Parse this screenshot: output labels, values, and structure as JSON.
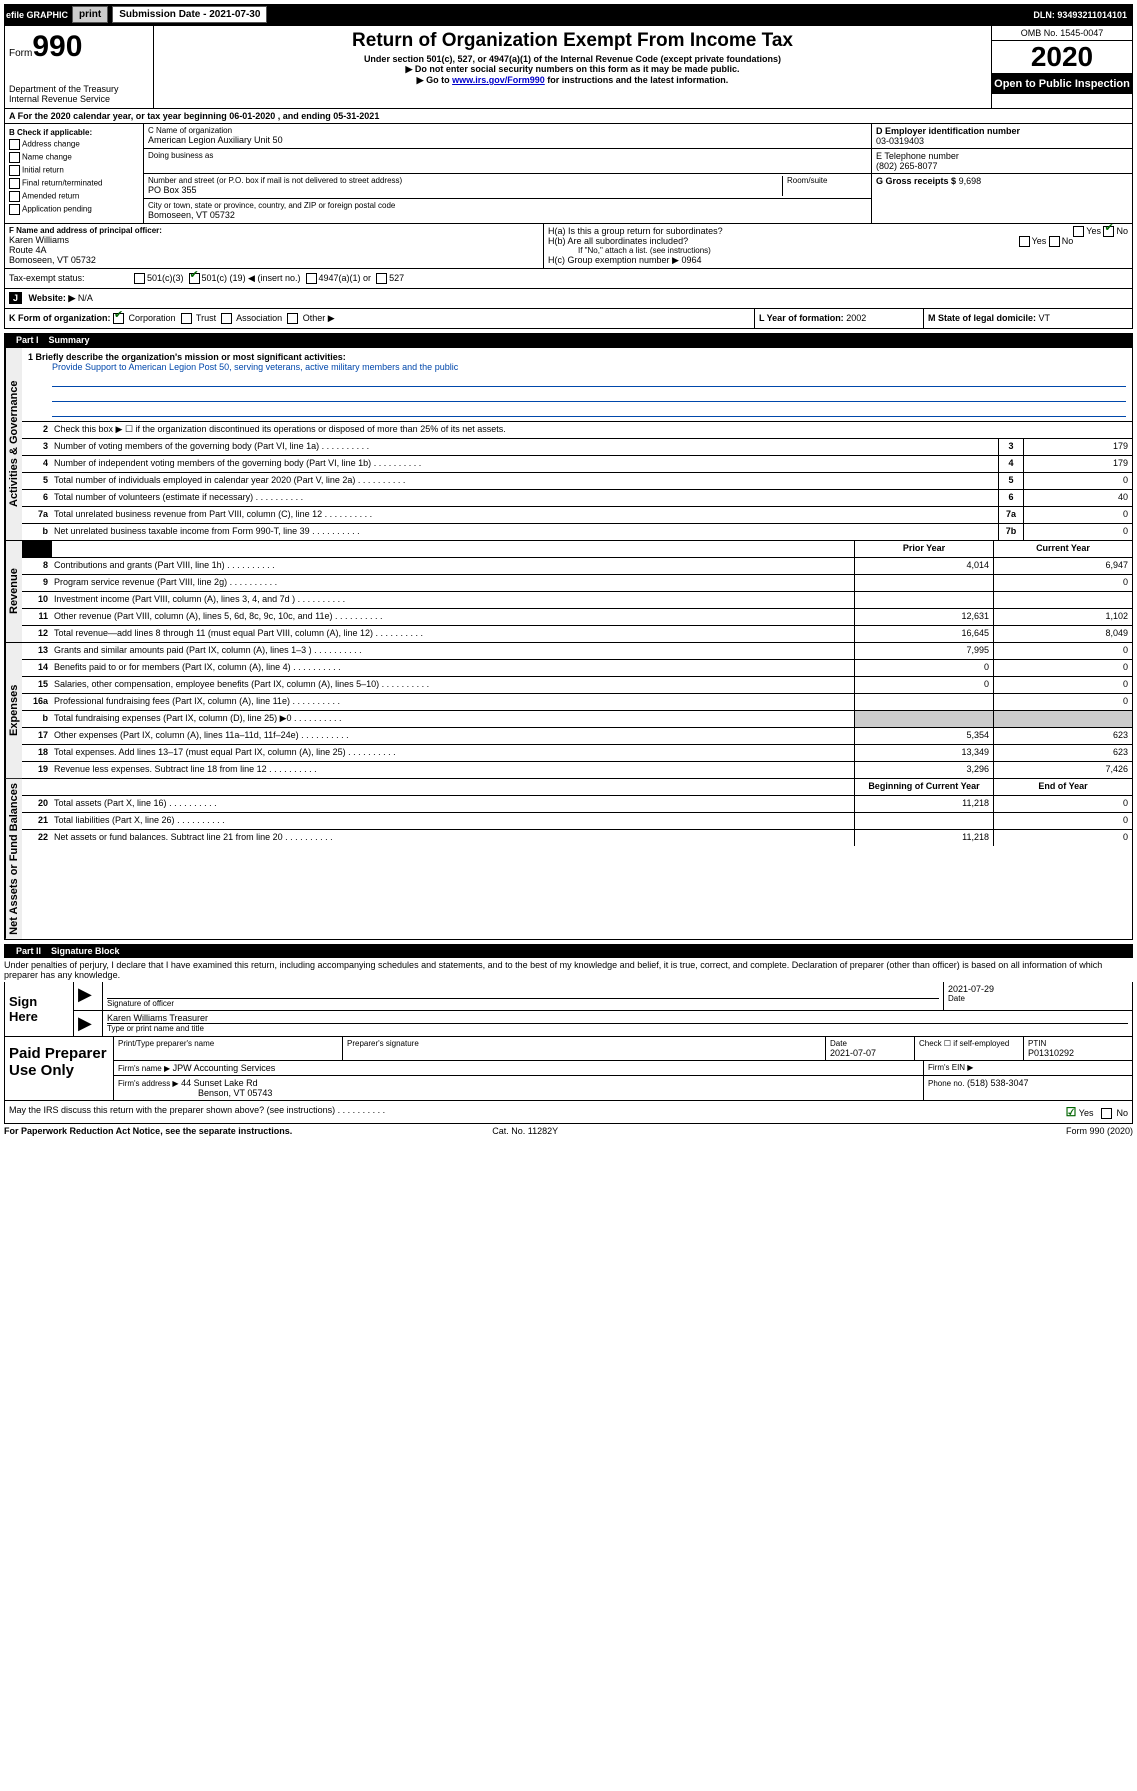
{
  "topbar": {
    "efile": "efile GRAPHIC",
    "print": "print",
    "sub_label": "Submission Date - 2021-07-30",
    "dln": "DLN: 93493211014101"
  },
  "header": {
    "form_label": "Form",
    "form_number": "990",
    "dept": "Department of the Treasury\nInternal Revenue Service",
    "title": "Return of Organization Exempt From Income Tax",
    "subtitle": "Under section 501(c), 527, or 4947(a)(1) of the Internal Revenue Code (except private foundations)",
    "note1": "▶ Do not enter social security numbers on this form as it may be made public.",
    "note2_pre": "▶ Go to ",
    "note2_link": "www.irs.gov/Form990",
    "note2_post": " for instructions and the latest information.",
    "omb": "OMB No. 1545-0047",
    "year": "2020",
    "inspection": "Open to Public Inspection"
  },
  "period": {
    "line": "A For the 2020 calendar year, or tax year beginning 06-01-2020      , and ending 05-31-2021"
  },
  "section_b": {
    "title": "B Check if applicable:",
    "opts": [
      "Address change",
      "Name change",
      "Initial return",
      "Final return/terminated",
      "Amended return",
      "Application pending"
    ]
  },
  "section_c": {
    "label_name": "C Name of organization",
    "name": "American Legion Auxiliary Unit 50",
    "dba_label": "Doing business as",
    "addr_label": "Number and street (or P.O. box if mail is not delivered to street address)",
    "room_label": "Room/suite",
    "addr": "PO Box 355",
    "city_label": "City or town, state or province, country, and ZIP or foreign postal code",
    "city": "Bomoseen, VT  05732"
  },
  "section_d": {
    "ein_label": "D Employer identification number",
    "ein": "03-0319403",
    "phone_label": "E Telephone number",
    "phone": "(802) 265-8077",
    "gross_label": "G Gross receipts $",
    "gross": "9,698"
  },
  "officer": {
    "label": "F  Name and address of principal officer:",
    "name": "Karen Williams",
    "addr1": "Route 4A",
    "addr2": "Bomoseen, VT  05732"
  },
  "h_block": {
    "ha": "H(a)  Is this a group return for subordinates?",
    "ha_yes": "Yes",
    "ha_no": "No",
    "hb": "H(b)  Are all subordinates included?",
    "hb_note": "If \"No,\" attach a list. (see instructions)",
    "hc": "H(c)  Group exemption number ▶",
    "hc_val": "0964"
  },
  "status": {
    "label": "Tax-exempt status:",
    "opt1": "501(c)(3)",
    "opt2_pre": "501(c) (",
    "opt2_num": "19",
    "opt2_post": ") ◀ (insert no.)",
    "opt3": "4947(a)(1) or",
    "opt4": "527"
  },
  "website": {
    "j": "J",
    "label": "Website: ▶",
    "val": "N/A"
  },
  "k_org": {
    "label": "K Form of organization:",
    "opts": [
      "Corporation",
      "Trust",
      "Association",
      "Other ▶"
    ],
    "l_label": "L Year of formation:",
    "l_val": "2002",
    "m_label": "M State of legal domicile:",
    "m_val": "VT"
  },
  "part1": {
    "num": "Part I",
    "title": "Summary",
    "vlabel_gov": "Activities & Governance",
    "vlabel_rev": "Revenue",
    "vlabel_exp": "Expenses",
    "vlabel_net": "Net Assets or Fund Balances",
    "line1_label": "1  Briefly describe the organization's mission or most significant activities:",
    "mission": "Provide Support to American Legion Post 50, serving veterans, active military members and the public",
    "line2": "Check this box ▶ ☐  if the organization discontinued its operations or disposed of more than 25% of its net assets.",
    "lines_gov": [
      {
        "n": "3",
        "d": "Number of voting members of the governing body (Part VI, line 1a)",
        "box": "3",
        "v": "179"
      },
      {
        "n": "4",
        "d": "Number of independent voting members of the governing body (Part VI, line 1b)",
        "box": "4",
        "v": "179"
      },
      {
        "n": "5",
        "d": "Total number of individuals employed in calendar year 2020 (Part V, line 2a)",
        "box": "5",
        "v": "0"
      },
      {
        "n": "6",
        "d": "Total number of volunteers (estimate if necessary)",
        "box": "6",
        "v": "40"
      },
      {
        "n": "7a",
        "d": "Total unrelated business revenue from Part VIII, column (C), line 12",
        "box": "7a",
        "v": "0"
      },
      {
        "n": "b",
        "d": "Net unrelated business taxable income from Form 990-T, line 39",
        "box": "7b",
        "v": "0"
      }
    ],
    "col_headers": {
      "prior": "Prior Year",
      "curr": "Current Year"
    },
    "lines_rev": [
      {
        "n": "8",
        "d": "Contributions and grants (Part VIII, line 1h)",
        "p": "4,014",
        "c": "6,947"
      },
      {
        "n": "9",
        "d": "Program service revenue (Part VIII, line 2g)",
        "p": "",
        "c": "0"
      },
      {
        "n": "10",
        "d": "Investment income (Part VIII, column (A), lines 3, 4, and 7d )",
        "p": "",
        "c": ""
      },
      {
        "n": "11",
        "d": "Other revenue (Part VIII, column (A), lines 5, 6d, 8c, 9c, 10c, and 11e)",
        "p": "12,631",
        "c": "1,102"
      },
      {
        "n": "12",
        "d": "Total revenue—add lines 8 through 11 (must equal Part VIII, column (A), line 12)",
        "p": "16,645",
        "c": "8,049"
      }
    ],
    "lines_exp": [
      {
        "n": "13",
        "d": "Grants and similar amounts paid (Part IX, column (A), lines 1–3 )",
        "p": "7,995",
        "c": "0"
      },
      {
        "n": "14",
        "d": "Benefits paid to or for members (Part IX, column (A), line 4)",
        "p": "0",
        "c": "0"
      },
      {
        "n": "15",
        "d": "Salaries, other compensation, employee benefits (Part IX, column (A), lines 5–10)",
        "p": "0",
        "c": "0"
      },
      {
        "n": "16a",
        "d": "Professional fundraising fees (Part IX, column (A), line 11e)",
        "p": "",
        "c": "0",
        "shaded_prior": false
      },
      {
        "n": "b",
        "d": "Total fundraising expenses (Part IX, column (D), line 25) ▶0",
        "p": "",
        "c": "",
        "shaded": true
      },
      {
        "n": "17",
        "d": "Other expenses (Part IX, column (A), lines 11a–11d, 11f–24e)",
        "p": "5,354",
        "c": "623"
      },
      {
        "n": "18",
        "d": "Total expenses. Add lines 13–17 (must equal Part IX, column (A), line 25)",
        "p": "13,349",
        "c": "623"
      },
      {
        "n": "19",
        "d": "Revenue less expenses. Subtract line 18 from line 12",
        "p": "3,296",
        "c": "7,426"
      }
    ],
    "net_headers": {
      "prior": "Beginning of Current Year",
      "curr": "End of Year"
    },
    "lines_net": [
      {
        "n": "20",
        "d": "Total assets (Part X, line 16)",
        "p": "11,218",
        "c": "0"
      },
      {
        "n": "21",
        "d": "Total liabilities (Part X, line 26)",
        "p": "",
        "c": "0"
      },
      {
        "n": "22",
        "d": "Net assets or fund balances. Subtract line 21 from line 20",
        "p": "11,218",
        "c": "0"
      }
    ]
  },
  "part2": {
    "num": "Part II",
    "title": "Signature Block",
    "perjury": "Under penalties of perjury, I declare that I have examined this return, including accompanying schedules and statements, and to the best of my knowledge and belief, it is true, correct, and complete. Declaration of preparer (other than officer) is based on all information of which preparer has any knowledge."
  },
  "sign": {
    "label": "Sign Here",
    "sig_officer": "Signature of officer",
    "date": "2021-07-29",
    "date_label": "Date",
    "name": "Karen Williams  Treasurer",
    "name_label": "Type or print name and title"
  },
  "paid": {
    "label": "Paid Preparer Use Only",
    "h1": "Print/Type preparer's name",
    "h2": "Preparer's signature",
    "h3": "Date",
    "date": "2021-07-07",
    "h4_pre": "Check ☐ if self-employed",
    "h5": "PTIN",
    "ptin": "P01310292",
    "firm_name_label": "Firm's name      ▶",
    "firm_name": "JPW Accounting Services",
    "firm_ein_label": "Firm's EIN ▶",
    "firm_addr_label": "Firm's address ▶",
    "firm_addr": "44 Sunset Lake Rd",
    "firm_city": "Benson, VT  05743",
    "phone_label": "Phone no.",
    "phone": "(518) 538-3047"
  },
  "discuss": {
    "q": "May the IRS discuss this return with the preparer shown above? (see instructions)",
    "yes": "Yes",
    "no": "No"
  },
  "footer": {
    "left": "For Paperwork Reduction Act Notice, see the separate instructions.",
    "mid": "Cat. No. 11282Y",
    "right": "Form 990 (2020)"
  }
}
